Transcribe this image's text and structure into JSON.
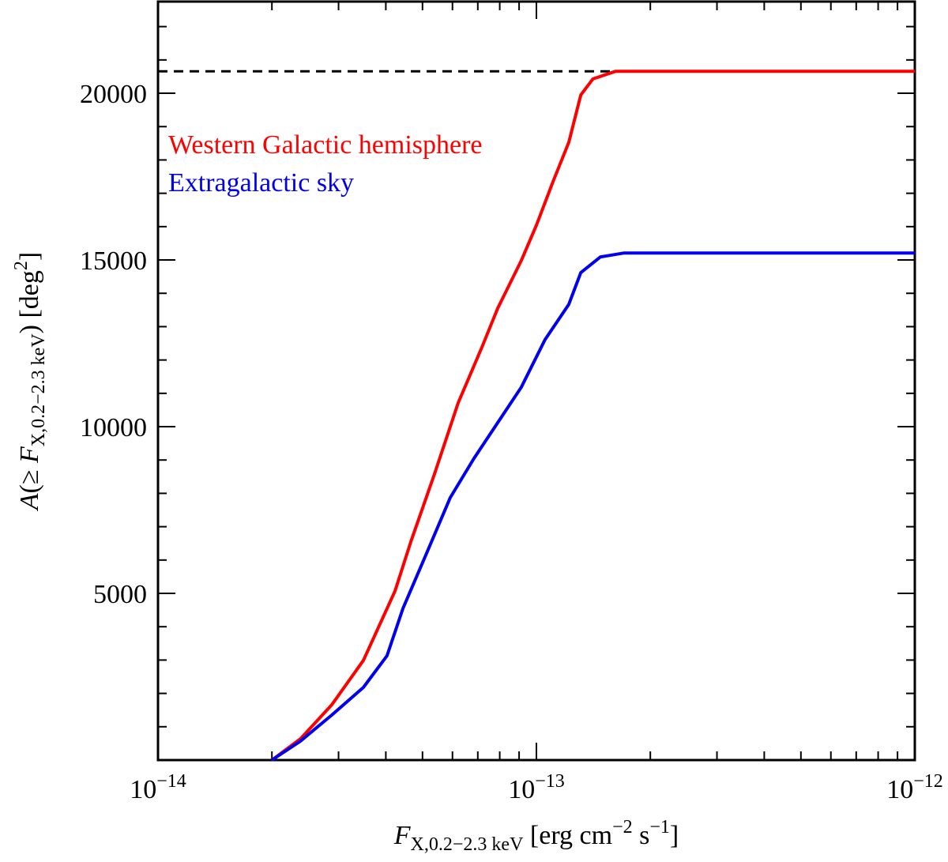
{
  "chart_data": {
    "type": "line",
    "xscale": "log",
    "xlim": [
      1e-14,
      1e-12
    ],
    "ylim": [
      0,
      22750
    ],
    "xticks": [
      {
        "value": 1e-14,
        "label": "10",
        "exponent": "−14"
      },
      {
        "value": 1e-13,
        "label": "10",
        "exponent": "−13"
      },
      {
        "value": 1e-12,
        "label": "10",
        "exponent": "−12"
      }
    ],
    "xminorticks": [
      2e-14,
      3e-14,
      4e-14,
      5e-14,
      6e-14,
      7e-14,
      8e-14,
      9e-14,
      2e-13,
      3e-13,
      4e-13,
      5e-13,
      6e-13,
      7e-13,
      8e-13,
      9e-13
    ],
    "yticks": [
      5000,
      10000,
      15000,
      20000
    ],
    "yminorticks": [
      1000,
      2000,
      3000,
      4000,
      6000,
      7000,
      8000,
      9000,
      11000,
      12000,
      13000,
      14000,
      16000,
      17000,
      18000,
      19000,
      21000,
      22000
    ],
    "xlabel": [
      {
        "text": "F",
        "style": "italic"
      },
      {
        "text": "X,0.2−2.3 keV",
        "style": "sub"
      },
      {
        "text": " [erg cm",
        "style": "normal"
      },
      {
        "text": "−2",
        "style": "sup"
      },
      {
        "text": " s",
        "style": "normal"
      },
      {
        "text": "−1",
        "style": "sup"
      },
      {
        "text": "]",
        "style": "normal"
      }
    ],
    "ylabel": [
      {
        "text": "A",
        "style": "italic"
      },
      {
        "text": "(≥ ",
        "style": "normal"
      },
      {
        "text": "F",
        "style": "italic"
      },
      {
        "text": "X,0.2−2.3 keV",
        "style": "sub"
      },
      {
        "text": ") [deg",
        "style": "normal"
      },
      {
        "text": "2",
        "style": "sup"
      },
      {
        "text": "]",
        "style": "normal"
      }
    ],
    "hline": {
      "value": 20660,
      "x_end": 1.62e-13,
      "color": "#000000",
      "dash": true
    },
    "series": [
      {
        "name": "Western Galactic hemisphere",
        "color": "#ff0000",
        "x": [
          2e-14,
          2.38e-14,
          2.88e-14,
          3.49e-14,
          4.23e-14,
          4.66e-14,
          5.38e-14,
          6.21e-14,
          7.17e-14,
          7.9e-14,
          9.12e-14,
          1e-13,
          1.106e-13,
          1.218e-13,
          1.31e-13,
          1.41e-13,
          1.62e-13,
          1e-12
        ],
        "values": [
          0,
          640,
          1660,
          2990,
          5070,
          6560,
          8580,
          10710,
          12370,
          13550,
          14980,
          16040,
          17350,
          18530,
          19950,
          20430,
          20660,
          20660
        ]
      },
      {
        "name": "Extragalactic sky",
        "color": "#0000ee",
        "x": [
          2e-14,
          2.38e-14,
          2.88e-14,
          3.49e-14,
          4.03e-14,
          4.44e-14,
          5.13e-14,
          5.92e-14,
          6.84e-14,
          7.9e-14,
          9.12e-14,
          1.054e-13,
          1.218e-13,
          1.31e-13,
          1.476e-13,
          1.706e-13,
          1e-12
        ],
        "values": [
          0,
          570,
          1350,
          2180,
          3130,
          4550,
          6210,
          7870,
          9050,
          10120,
          11180,
          12610,
          13670,
          14620,
          15090,
          15210,
          15210
        ]
      }
    ]
  }
}
